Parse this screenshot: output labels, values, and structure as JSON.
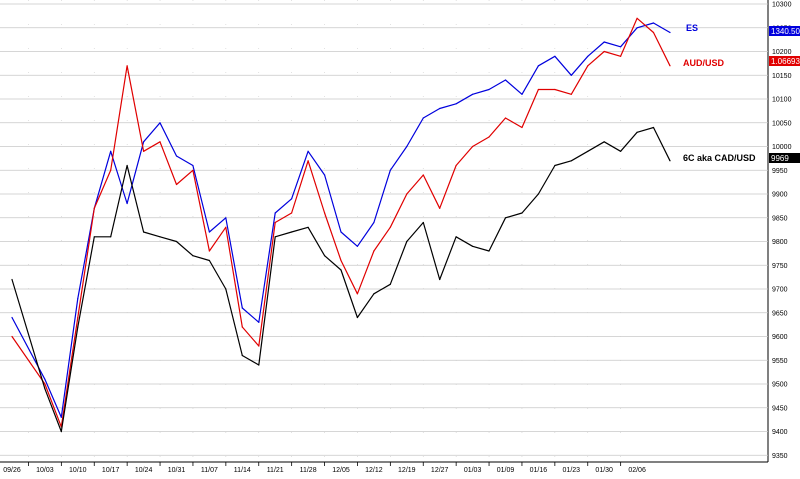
{
  "chart_data": {
    "type": "line",
    "grid": true,
    "x_tick_labels": [
      "09/26",
      "10/03",
      "10/10",
      "10/17",
      "10/24",
      "10/31",
      "11/07",
      "11/14",
      "11/21",
      "11/28",
      "12/05",
      "12/12",
      "12/19",
      "12/27",
      "01/03",
      "01/09",
      "01/16",
      "01/23",
      "01/30",
      "02/06"
    ],
    "y_tick_labels": [
      "10300",
      "10250",
      "10200",
      "10150",
      "10100",
      "10050",
      "10000",
      "9950",
      "9900",
      "9850",
      "9800",
      "9750",
      "9700",
      "9650",
      "9600",
      "9550",
      "9500",
      "9450",
      "9400",
      "9350"
    ],
    "ylim": [
      9330,
      10310
    ],
    "series": [
      {
        "name": "ES",
        "color": "#0000dd",
        "last_value_tag": "1340.50",
        "x": [
          0,
          1,
          1.5,
          2,
          2.5,
          3,
          3.5,
          4,
          4.5,
          5,
          5.5,
          6,
          6.5,
          7,
          7.5,
          8,
          8.5,
          9,
          9.5,
          10,
          10.5,
          11,
          11.5,
          12,
          12.5,
          13,
          13.5,
          14,
          14.5,
          15,
          15.5,
          16,
          16.5,
          17,
          17.5,
          18,
          18.5,
          19,
          19.5,
          20
        ],
        "y": [
          9640,
          9510,
          9430,
          9680,
          9870,
          9990,
          9880,
          10010,
          10050,
          9980,
          9960,
          9820,
          9850,
          9660,
          9630,
          9860,
          9890,
          9990,
          9940,
          9820,
          9790,
          9840,
          9950,
          10000,
          10060,
          10080,
          10090,
          10110,
          10120,
          10140,
          10110,
          10170,
          10190,
          10150,
          10190,
          10220,
          10210,
          10250,
          10260,
          10240
        ]
      },
      {
        "name": "AUD/USD",
        "color": "#e00000",
        "last_value_tag": "1.06693",
        "x": [
          0,
          1,
          1.5,
          2,
          2.5,
          3,
          3.5,
          4,
          4.5,
          5,
          5.5,
          6,
          6.5,
          7,
          7.5,
          8,
          8.5,
          9,
          9.5,
          10,
          10.5,
          11,
          11.5,
          12,
          12.5,
          13,
          13.5,
          14,
          14.5,
          15,
          15.5,
          16,
          16.5,
          17,
          17.5,
          18,
          18.5,
          19,
          19.5,
          20
        ],
        "y": [
          9600,
          9500,
          9410,
          9640,
          9870,
          9950,
          10170,
          9990,
          10010,
          9920,
          9950,
          9780,
          9830,
          9620,
          9580,
          9840,
          9860,
          9970,
          9860,
          9760,
          9690,
          9780,
          9830,
          9900,
          9940,
          9870,
          9960,
          10000,
          10020,
          10060,
          10040,
          10120,
          10120,
          10110,
          10170,
          10200,
          10190,
          10270,
          10240,
          10170
        ]
      },
      {
        "name": "6C aka CAD/USD",
        "color": "#000000",
        "last_value_tag": "9969",
        "x": [
          0,
          1,
          1.5,
          2,
          2.5,
          3,
          3.5,
          4,
          4.5,
          5,
          5.5,
          6,
          6.5,
          7,
          7.5,
          8,
          8.5,
          9,
          9.5,
          10,
          10.5,
          11,
          11.5,
          12,
          12.5,
          13,
          13.5,
          14,
          14.5,
          15,
          15.5,
          16,
          16.5,
          17,
          17.5,
          18,
          18.5,
          19,
          19.5,
          20
        ],
        "y": [
          9720,
          9490,
          9400,
          9620,
          9810,
          9810,
          9960,
          9820,
          9810,
          9800,
          9770,
          9760,
          9700,
          9560,
          9540,
          9810,
          9820,
          9830,
          9770,
          9740,
          9640,
          9690,
          9710,
          9800,
          9840,
          9720,
          9810,
          9790,
          9780,
          9850,
          9860,
          9900,
          9960,
          9970,
          9990,
          10010,
          9990,
          10030,
          10040,
          9970
        ]
      }
    ]
  }
}
